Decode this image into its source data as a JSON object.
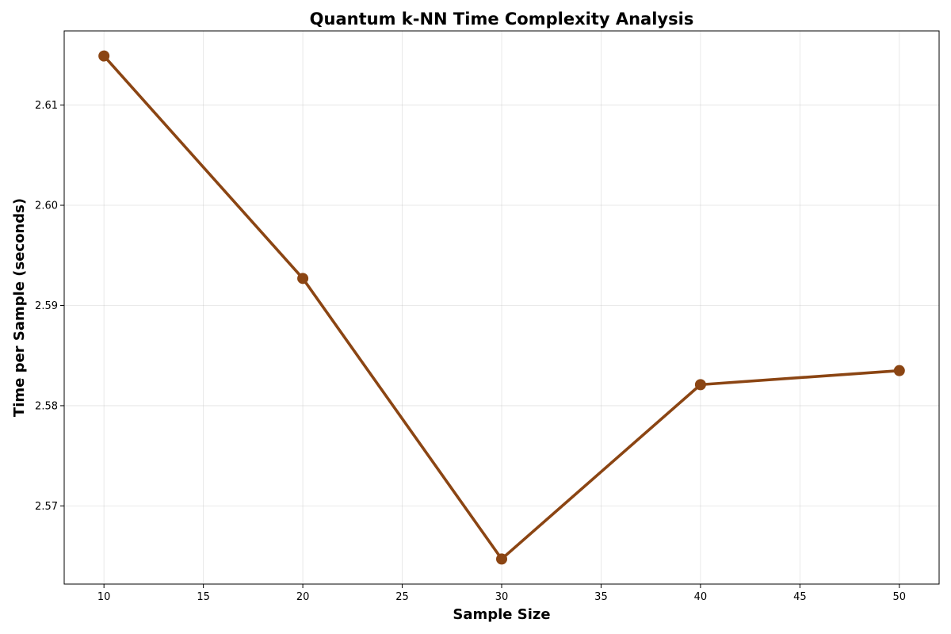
{
  "chart_data": {
    "type": "line",
    "title": "Quantum k-NN Time Complexity Analysis",
    "xlabel": "Sample Size",
    "ylabel": "Time per Sample (seconds)",
    "x": [
      10,
      20,
      30,
      40,
      50
    ],
    "series": [
      {
        "values": [
          2.6149,
          2.5927,
          2.5647,
          2.5821,
          2.5835
        ]
      }
    ],
    "xlim": [
      8,
      52
    ],
    "ylim": [
      2.5622,
      2.6174
    ],
    "xticks": [
      10,
      15,
      20,
      25,
      30,
      35,
      40,
      45,
      50
    ],
    "yticks": [
      2.57,
      2.58,
      2.59,
      2.6,
      2.61
    ],
    "xtick_labels": [
      "10",
      "15",
      "20",
      "25",
      "30",
      "35",
      "40",
      "45",
      "50"
    ],
    "ytick_labels": [
      "2.57",
      "2.58",
      "2.59",
      "2.60",
      "2.61"
    ],
    "grid": true,
    "line_color": "#8b4513",
    "marker": "circle"
  }
}
